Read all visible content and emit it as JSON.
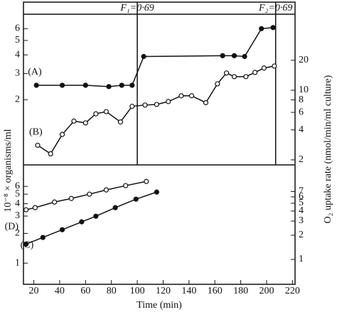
{
  "chart_data": [
    {
      "type": "line",
      "xlim": [
        12,
        222
      ],
      "ylim": [
        0.73,
        7.5
      ],
      "yticks": [
        2,
        3,
        4,
        5,
        6
      ],
      "ylog": true,
      "y2lim": [
        1.78,
        58
      ],
      "y2ticks": [
        2,
        4,
        6,
        8,
        10,
        20
      ],
      "y2log": true,
      "vlines": [
        {
          "x": 100,
          "label": "F₁=0·69"
        },
        {
          "x": 207,
          "label": "F₂=0·69"
        }
      ],
      "series": [
        {
          "name": "(A)",
          "color": "#111111",
          "marker": "filled",
          "x": [
            22,
            42,
            60,
            78,
            88,
            96,
            105,
            166,
            175,
            183,
            196,
            205
          ],
          "values": [
            2.5,
            2.5,
            2.5,
            2.45,
            2.5,
            2.5,
            3.9,
            3.95,
            3.95,
            3.9,
            6,
            6.1
          ]
        },
        {
          "name": "(B)",
          "color": "#111111",
          "marker": "open",
          "axis": "y2",
          "x": [
            23,
            33,
            42,
            51,
            60,
            68,
            76,
            87,
            96,
            106,
            115,
            124,
            134,
            142,
            153,
            162,
            169,
            175,
            184,
            191,
            198,
            206
          ],
          "values": [
            2.8,
            2.3,
            3.6,
            4.9,
            4.7,
            5.8,
            6.1,
            4.8,
            6.9,
            7.1,
            7.2,
            7.7,
            8.8,
            8.8,
            7.5,
            11.6,
            14.9,
            13.7,
            13.7,
            15.1,
            16.7,
            17.5
          ]
        }
      ]
    },
    {
      "type": "line",
      "xlim": [
        12,
        222
      ],
      "xticks": [
        20,
        40,
        60,
        80,
        100,
        120,
        140,
        160,
        180,
        200,
        220
      ],
      "xlabel": "Time (min)",
      "ylim": [
        0.61,
        9.9
      ],
      "yticks": [
        1,
        2,
        3,
        4,
        5,
        6
      ],
      "ylog": true,
      "ylabel": "10⁻⁸ × organisms/ml",
      "y2lim": [
        0.49,
        15
      ],
      "y2ticks": [
        1,
        2,
        3,
        4,
        5,
        6,
        7
      ],
      "y2log": true,
      "y2label": "O₂ uptake rate (nmol/min/ml culture)",
      "series": [
        {
          "name": "(C)",
          "color": "#111111",
          "marker": "filled",
          "x": [
            14,
            27,
            42,
            57,
            68,
            83,
            99,
            115
          ],
          "values": [
            1.56,
            1.82,
            2.18,
            2.62,
            2.99,
            3.65,
            4.45,
            5.25
          ]
        },
        {
          "name": "(D)",
          "color": "#111111",
          "marker": "open",
          "x": [
            14,
            21,
            36,
            49,
            63,
            76,
            91,
            107
          ],
          "values": [
            3.47,
            3.65,
            4.16,
            4.52,
            5.0,
            5.52,
            6.1,
            6.73
          ]
        }
      ]
    }
  ]
}
